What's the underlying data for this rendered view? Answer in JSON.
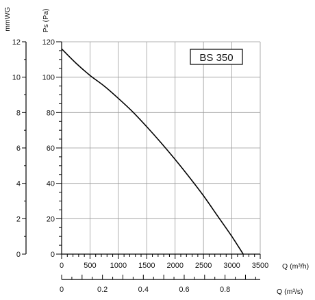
{
  "chart_data": {
    "type": "line",
    "title": "BS 350",
    "y_axis": {
      "label": "Ps (Pa)",
      "range": [
        0,
        120
      ],
      "ticks": [
        0,
        20,
        40,
        60,
        80,
        100,
        120
      ],
      "major_step": 20,
      "minor_step": 5
    },
    "y2_axis": {
      "label": "mmWG",
      "range": [
        0,
        12
      ],
      "ticks": [
        0,
        2,
        4,
        6,
        8,
        10,
        12
      ],
      "minor_step": 1
    },
    "x_axis": {
      "label": "Q (m³/h)",
      "range": [
        0,
        3500
      ],
      "ticks": [
        0,
        500,
        1000,
        1500,
        2000,
        2500,
        3000,
        3500
      ],
      "minor_step": 100
    },
    "x2_axis": {
      "label": "Q (m³/s)",
      "range": [
        0,
        0.9722
      ],
      "ticks": [
        0,
        0.2,
        0.4,
        0.6,
        0.8
      ],
      "tick_labels": [
        "0",
        "0.2",
        "0.4",
        "0.6",
        "0.8"
      ],
      "minor_step": 0.05
    },
    "grid": true,
    "series": [
      {
        "x": [
          0,
          250,
          500,
          750,
          1000,
          1250,
          1500,
          1750,
          2000,
          2250,
          2500,
          2750,
          3000,
          3200
        ],
        "y": [
          116,
          108,
          101,
          95,
          88,
          80.5,
          72,
          63,
          53.5,
          43.5,
          33,
          21.5,
          10,
          0
        ]
      }
    ],
    "colors": {
      "line": "#000000",
      "grid": "#999999",
      "axis": "#000000"
    }
  }
}
